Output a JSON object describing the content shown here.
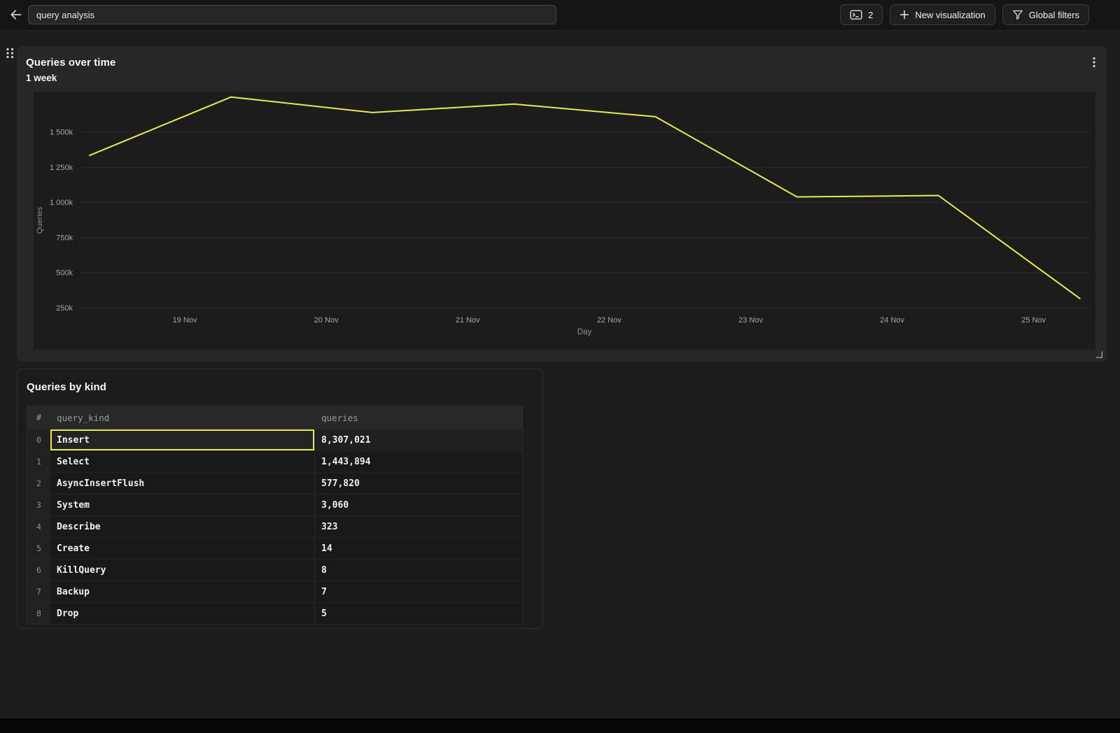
{
  "topbar": {
    "title_value": "query analysis",
    "console_count": "2",
    "new_visualization_label": "New visualization",
    "global_filters_label": "Global filters"
  },
  "chart_data": {
    "type": "line",
    "title": "Queries over time",
    "subtitle": "1 week",
    "xlabel": "Day",
    "ylabel": "Queries",
    "x": [
      "18 Nov",
      "19 Nov",
      "20 Nov",
      "21 Nov",
      "22 Nov",
      "23 Nov",
      "24 Nov",
      "25 Nov"
    ],
    "x_tick_labels": [
      "19 Nov",
      "20 Nov",
      "21 Nov",
      "22 Nov",
      "23 Nov",
      "24 Nov",
      "25 Nov"
    ],
    "y_tick_labels": [
      "250k",
      "500k",
      "750k",
      "1 000k",
      "1 250k",
      "1 500k"
    ],
    "y_tick_values": [
      250000,
      500000,
      750000,
      1000000,
      1250000,
      1500000
    ],
    "series": [
      {
        "name": "Queries",
        "values": [
          1335000,
          1750000,
          1640000,
          1700000,
          1610000,
          1040000,
          1050000,
          317000
        ]
      }
    ],
    "ylim": [
      150000,
      1820000
    ],
    "grid": true,
    "legend": false,
    "line_color": "#e7eb4d"
  },
  "table": {
    "title": "Queries by kind",
    "columns": [
      "#",
      "query_kind",
      "queries"
    ],
    "rows": [
      {
        "index": "0",
        "query_kind": "Insert",
        "queries": "8,307,021",
        "selected": true
      },
      {
        "index": "1",
        "query_kind": "Select",
        "queries": "1,443,894",
        "selected": false
      },
      {
        "index": "2",
        "query_kind": "AsyncInsertFlush",
        "queries": "577,820",
        "selected": false
      },
      {
        "index": "3",
        "query_kind": "System",
        "queries": "3,060",
        "selected": false
      },
      {
        "index": "4",
        "query_kind": "Describe",
        "queries": "323",
        "selected": false
      },
      {
        "index": "5",
        "query_kind": "Create",
        "queries": "14",
        "selected": false
      },
      {
        "index": "6",
        "query_kind": "KillQuery",
        "queries": "8",
        "selected": false
      },
      {
        "index": "7",
        "query_kind": "Backup",
        "queries": "7",
        "selected": false
      },
      {
        "index": "8",
        "query_kind": "Drop",
        "queries": "5",
        "selected": false
      }
    ]
  },
  "colors": {
    "accent_yellow": "#e7eb4d",
    "panel_background": "#272727",
    "page_background": "#1d1d1d"
  }
}
